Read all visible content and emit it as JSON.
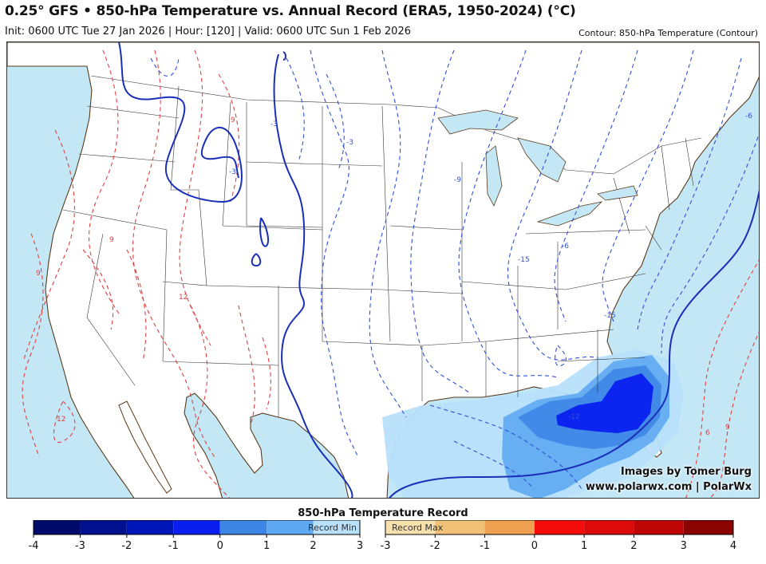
{
  "header": {
    "title": "0.25° GFS • 850-hPa Temperature vs. Annual Record (ERA5, 1950-2024) (°C)",
    "subtitle": "Init: 0600 UTC Tue 27 Jan 2026 | Hour: [120] | Valid: 0600 UTC Sun 1 Feb 2026",
    "contour_note": "Contour: 850-hPa Temperature (Contour)"
  },
  "credit": {
    "line1": "Images by Tomer Burg",
    "line2": "www.polarwx.com | PolarWx"
  },
  "contour_labels": [
    {
      "id": "c1",
      "text": "-3"
    },
    {
      "id": "c2",
      "text": "-3"
    },
    {
      "id": "c3",
      "text": "-3"
    },
    {
      "id": "c4",
      "text": "-15"
    },
    {
      "id": "c5",
      "text": "-15"
    },
    {
      "id": "c6",
      "text": "-6"
    },
    {
      "id": "c7",
      "text": "-9"
    },
    {
      "id": "c8",
      "text": "-12"
    },
    {
      "id": "c9",
      "text": "9"
    },
    {
      "id": "c10",
      "text": "9"
    },
    {
      "id": "c11",
      "text": "12"
    },
    {
      "id": "c12",
      "text": "12"
    },
    {
      "id": "c13",
      "text": "9"
    },
    {
      "id": "c14",
      "text": "6"
    },
    {
      "id": "c15",
      "text": "9"
    },
    {
      "id": "c16",
      "text": "-6"
    }
  ],
  "colorbar": {
    "title": "850-hPa Temperature Record",
    "min_label": "Record Min",
    "max_label": "Record Max",
    "min_segments": [
      {
        "from": -4,
        "to": -3,
        "color": "#000a6b"
      },
      {
        "from": -3,
        "to": -2,
        "color": "#00108f"
      },
      {
        "from": -2,
        "to": -1,
        "color": "#0016b8"
      },
      {
        "from": -1,
        "to": 0,
        "color": "#0a1fef"
      },
      {
        "from": 0,
        "to": 1,
        "color": "#3d86e6"
      },
      {
        "from": 1,
        "to": 2,
        "color": "#5fa8f2"
      },
      {
        "from": 2,
        "to": 3,
        "color": "#b8e0fb"
      }
    ],
    "max_segments": [
      {
        "from": -3,
        "to": -2,
        "color": "#f7dfae"
      },
      {
        "from": -2,
        "to": -1,
        "color": "#f2c178"
      },
      {
        "from": -1,
        "to": 0,
        "color": "#eea050"
      },
      {
        "from": 0,
        "to": 1,
        "color": "#f50d0d"
      },
      {
        "from": 1,
        "to": 2,
        "color": "#dd0a0a"
      },
      {
        "from": 2,
        "to": 3,
        "color": "#bf0606"
      },
      {
        "from": 3,
        "to": 4,
        "color": "#8c0303"
      }
    ],
    "min_ticks": [
      "-4",
      "-3",
      "-2",
      "-1",
      "0",
      "1",
      "2",
      "3"
    ],
    "max_ticks": [
      "-3",
      "-2",
      "-1",
      "0",
      "1",
      "2",
      "3",
      "4"
    ]
  }
}
